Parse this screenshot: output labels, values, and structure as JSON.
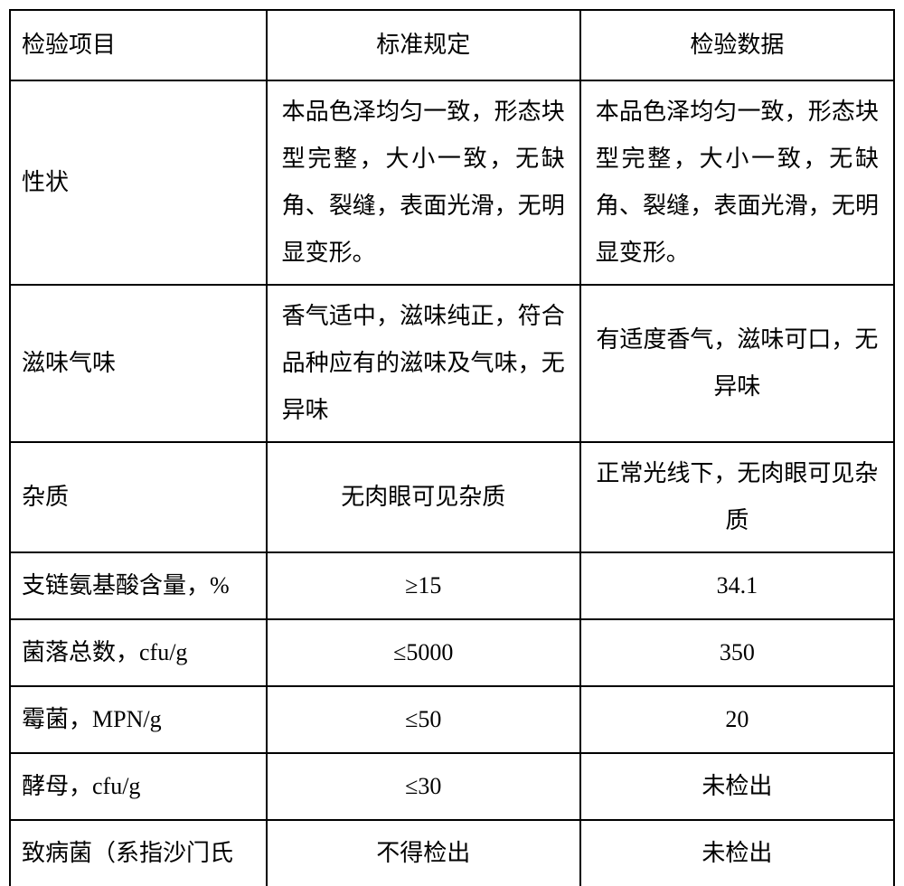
{
  "table": {
    "border_color": "#000000",
    "background_color": "#ffffff",
    "text_color": "#000000",
    "font_size": 26,
    "headers": {
      "col1": "检验项目",
      "col2": "标准规定",
      "col3": "检验数据"
    },
    "rows": [
      {
        "item": "性状",
        "standard": "本品色泽均匀一致，形态块型完整，大小一致，无缺角、裂缝，表面光滑，无明显变形。",
        "inspection": "本品色泽均匀一致，形态块型完整，大小一致，无缺角、裂缝，表面光滑，无明显变形。"
      },
      {
        "item": "滋味气味",
        "standard": "香气适中，滋味纯正，符合品种应有的滋味及气味，无异味",
        "inspection": "有适度香气，滋味可口，无异味"
      },
      {
        "item": "杂质",
        "standard": "无肉眼可见杂质",
        "inspection": "正常光线下，无肉眼可见杂质"
      },
      {
        "item": "支链氨基酸含量，%",
        "standard": "≥15",
        "inspection": "34.1"
      },
      {
        "item": "菌落总数，cfu/g",
        "standard": "≤5000",
        "inspection": "350"
      },
      {
        "item": "霉菌，MPN/g",
        "standard": "≤50",
        "inspection": "20"
      },
      {
        "item": "酵母，cfu/g",
        "standard": "≤30",
        "inspection": "未检出"
      },
      {
        "item": "致病菌（系指沙门氏",
        "standard": "不得检出",
        "inspection": "未检出"
      }
    ]
  }
}
